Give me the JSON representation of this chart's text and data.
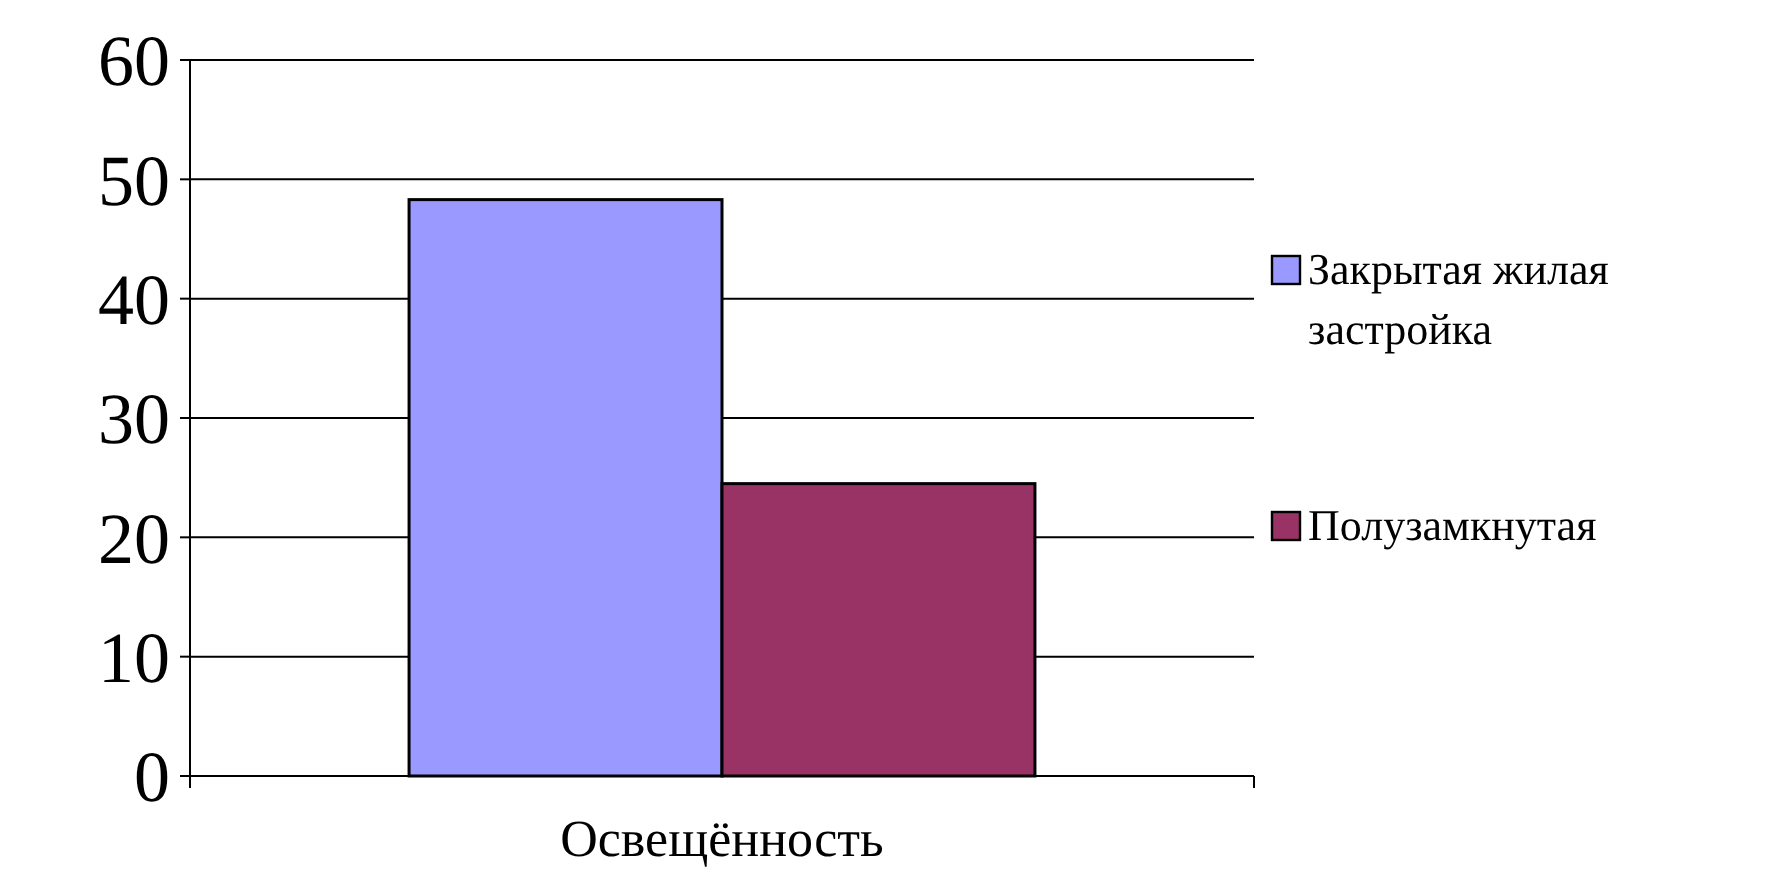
{
  "chart_data": {
    "type": "bar",
    "categories": [
      "Освещённость"
    ],
    "series": [
      {
        "name": "Закрытая жилая застройка",
        "color": "#9999ff",
        "values": [
          48.3
        ]
      },
      {
        "name": "Полузамкнутая",
        "color": "#993366",
        "values": [
          24.5
        ]
      }
    ],
    "ylim": [
      0,
      60
    ],
    "yticks": [
      0,
      10,
      20,
      30,
      40,
      50,
      60
    ],
    "grid": "y",
    "legend": "right"
  }
}
